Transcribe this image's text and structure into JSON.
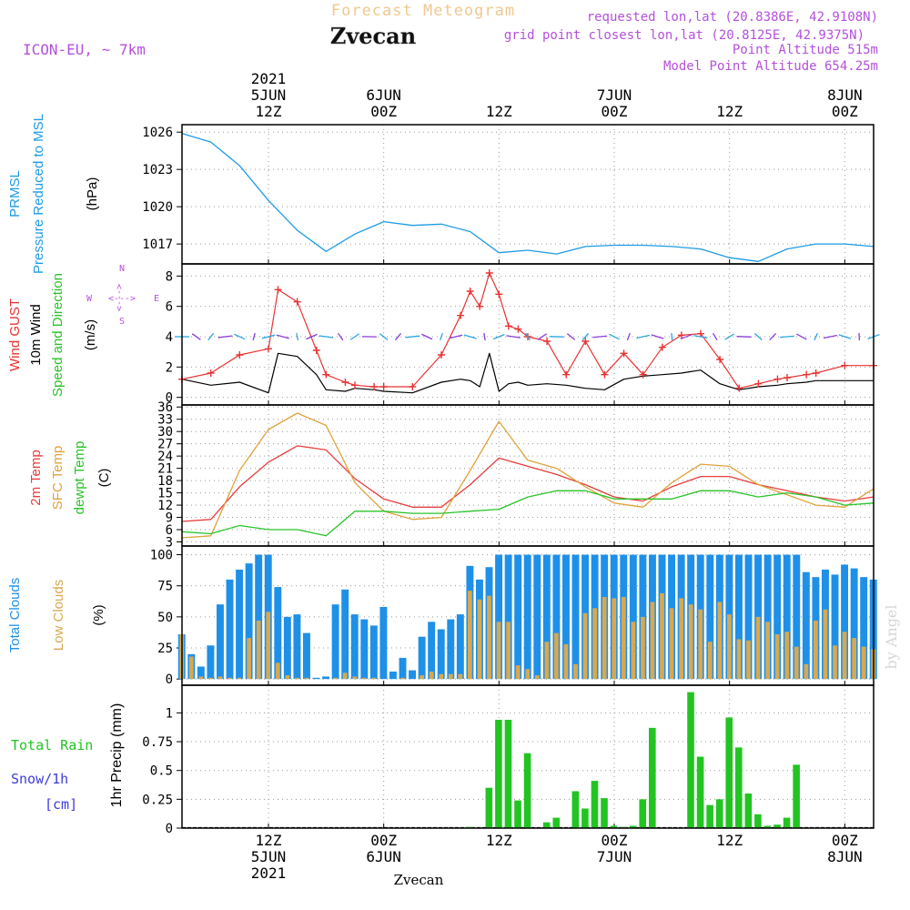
{
  "header": {
    "product": "Forecast Meteogram",
    "location": "Zvecan",
    "model": "ICON-EU, ~ 7km",
    "requested": "requested lon,lat (20.8386E, 42.9108N)",
    "gridpoint": "grid point closest lon,lat (20.8125E, 42.9375N)",
    "point_alt": "Point Altitude 515m",
    "model_alt": "Model Point Altitude 654.25m",
    "footer_location": "Zvecan",
    "credit": "by Angel"
  },
  "time_axis": {
    "top_labels": [
      {
        "lines": [
          "2021",
          "5JUN",
          "12Z"
        ]
      },
      {
        "lines": [
          "6JUN",
          "00Z"
        ]
      },
      {
        "lines": [
          "12Z"
        ]
      },
      {
        "lines": [
          "7JUN",
          "00Z"
        ]
      },
      {
        "lines": [
          "12Z"
        ]
      },
      {
        "lines": [
          "8JUN",
          "00Z"
        ]
      }
    ],
    "bottom_labels": [
      {
        "lines": [
          "12Z",
          "5JUN",
          "2021"
        ]
      },
      {
        "lines": [
          "00Z",
          "6JUN"
        ]
      },
      {
        "lines": [
          "12Z"
        ]
      },
      {
        "lines": [
          "00Z",
          "7JUN"
        ]
      },
      {
        "lines": [
          "12Z"
        ]
      },
      {
        "lines": [
          "00Z",
          "8JUN"
        ]
      }
    ],
    "tick_hours": [
      9,
      21,
      33,
      45,
      57,
      69
    ]
  },
  "panel_labels": {
    "pressure": {
      "title1": "PRMSL",
      "title2": "Pressure Reduced to MSL",
      "unit": "(hPa)"
    },
    "wind": {
      "gust": "Wind GUST",
      "wind10": "10m Wind",
      "dir": "Speed and Direction",
      "unit": "(m/s)",
      "compass": {
        "n": "N",
        "s": "S",
        "w": "W",
        "e": "E",
        "ns": "<--->",
        "we": "<--->"
      }
    },
    "temp": {
      "t2m": "2m Temp",
      "sfc": "SFC Temp",
      "dewpt": "dewpt Temp",
      "unit": "(C)"
    },
    "clouds": {
      "total": "Total Clouds",
      "low": "Low Clouds",
      "unit": "(%)"
    },
    "precip": {
      "rain": "Total  Rain",
      "snow": "Snow/1h",
      "cm": "[cm]",
      "unit": "1hr Precip (mm)"
    }
  },
  "colors": {
    "pressure": "#1e9be8",
    "gust": "#e83232",
    "wind": "#000000",
    "t2m": "#e83c3c",
    "sfc": "#e0a23c",
    "dewpt": "#28c428",
    "total_cloud": "#1e90e8",
    "low_cloud": "#d8a850",
    "rain": "#22c422",
    "purple": "#b450dc",
    "title_orange": "#f0c890"
  },
  "chart_data": [
    {
      "type": "line",
      "title": "PRMSL",
      "ylabel": "(hPa)",
      "yticks": [
        1017,
        1020,
        1023,
        1026
      ],
      "ylim": [
        1015.4,
        1026.6
      ],
      "x_hours": [
        0,
        3,
        6,
        9,
        12,
        15,
        18,
        21,
        24,
        27,
        30,
        33,
        36,
        39,
        42,
        45,
        48,
        51,
        54,
        57,
        60,
        63,
        66,
        69,
        72
      ],
      "series": [
        {
          "values": [
            1025.9,
            1025.2,
            1023.3,
            1020.5,
            1018.1,
            1016.4,
            1017.8,
            1018.8,
            1018.5,
            1018.6,
            1018.0,
            1016.3,
            1016.5,
            1016.2,
            1016.8,
            1016.9,
            1016.9,
            1016.8,
            1016.6,
            1015.9,
            1015.6,
            1016.6,
            1017.0,
            1017.0,
            1016.8
          ]
        }
      ]
    },
    {
      "type": "line",
      "title": "Wind GUST / 10m Wind",
      "ylabel": "(m/s)",
      "yticks": [
        0,
        2,
        4,
        6,
        8
      ],
      "ylim": [
        -0.5,
        8.8
      ],
      "x_hours": [
        0,
        3,
        6,
        9,
        10,
        12,
        14,
        15,
        17,
        18,
        20,
        21,
        24,
        27,
        29,
        30,
        31,
        32,
        33,
        34,
        35,
        36,
        38,
        40,
        42,
        44,
        46,
        48,
        50,
        52,
        54,
        56,
        58,
        60,
        62,
        63,
        65,
        66,
        69,
        72
      ],
      "series": [
        {
          "name": "Wind GUST",
          "values": [
            1.2,
            1.6,
            2.8,
            3.2,
            7.1,
            6.3,
            3.1,
            1.5,
            1.0,
            0.8,
            0.7,
            0.7,
            0.7,
            2.8,
            5.4,
            7.0,
            6.0,
            8.2,
            6.8,
            4.7,
            4.5,
            4.0,
            3.7,
            1.5,
            3.7,
            1.5,
            2.9,
            1.5,
            3.3,
            4.1,
            4.2,
            2.5,
            0.6,
            0.9,
            1.2,
            1.3,
            1.5,
            1.6,
            2.1,
            2.1
          ]
        },
        {
          "name": "10m Wind",
          "values": [
            1.2,
            0.8,
            1.0,
            0.3,
            2.9,
            2.7,
            1.5,
            0.5,
            0.4,
            0.6,
            0.5,
            0.4,
            0.3,
            1.0,
            1.2,
            1.1,
            0.7,
            2.9,
            0.4,
            0.9,
            1.0,
            0.8,
            0.9,
            0.8,
            0.6,
            0.5,
            1.2,
            1.4,
            1.5,
            1.6,
            1.8,
            0.9,
            0.5,
            0.7,
            0.8,
            0.9,
            1.0,
            1.1,
            1.1,
            1.1
          ]
        }
      ]
    },
    {
      "type": "line",
      "title": "2m Temp / SFC Temp / dewpt Temp",
      "ylabel": "(C)",
      "yticks": [
        3,
        6,
        9,
        12,
        15,
        18,
        21,
        24,
        27,
        30,
        33,
        36
      ],
      "ylim": [
        2.0,
        36.5
      ],
      "x_hours": [
        0,
        3,
        6,
        9,
        12,
        15,
        18,
        21,
        24,
        27,
        30,
        33,
        36,
        39,
        42,
        45,
        48,
        51,
        54,
        57,
        60,
        63,
        66,
        69,
        72
      ],
      "series": [
        {
          "name": "2m Temp",
          "values": [
            8.0,
            8.5,
            16.5,
            22.5,
            26.5,
            25.5,
            18.5,
            13.5,
            11.5,
            11.5,
            17.0,
            23.5,
            21.5,
            19.5,
            17.0,
            14.0,
            13.0,
            16.5,
            19.0,
            19.0,
            17.0,
            15.5,
            14.0,
            13.0,
            14.0
          ]
        },
        {
          "name": "SFC Temp",
          "values": [
            4.0,
            4.5,
            20.5,
            30.5,
            34.5,
            31.5,
            17.5,
            10.5,
            8.5,
            9.0,
            20.5,
            32.5,
            23.0,
            21.0,
            16.5,
            12.5,
            11.5,
            17.5,
            22.0,
            21.5,
            17.0,
            14.5,
            12.0,
            11.5,
            16.0
          ]
        },
        {
          "name": "dewpt Temp",
          "values": [
            5.5,
            5.0,
            7.0,
            6.0,
            6.0,
            4.5,
            10.5,
            10.5,
            10.0,
            10.0,
            10.5,
            11.0,
            14.0,
            15.5,
            15.5,
            13.5,
            13.5,
            13.5,
            15.5,
            15.5,
            14.0,
            15.0,
            14.0,
            12.0,
            12.5
          ]
        }
      ]
    },
    {
      "type": "bar",
      "title": "Total Clouds / Low Clouds",
      "ylabel": "(%)",
      "yticks": [
        0,
        25,
        50,
        75,
        100
      ],
      "ylim": [
        -5,
        107
      ],
      "x_hours": [
        0,
        1,
        2,
        3,
        4,
        5,
        6,
        7,
        8,
        9,
        10,
        11,
        12,
        13,
        14,
        15,
        16,
        17,
        18,
        19,
        20,
        21,
        22,
        23,
        24,
        25,
        26,
        27,
        28,
        29,
        30,
        31,
        32,
        33,
        34,
        35,
        36,
        37,
        38,
        39,
        40,
        41,
        42,
        43,
        44,
        45,
        46,
        47,
        48,
        49,
        50,
        51,
        52,
        53,
        54,
        55,
        56,
        57,
        58,
        59,
        60,
        61,
        62,
        63,
        64,
        65,
        66,
        67,
        68,
        69,
        70,
        71,
        72
      ],
      "series": [
        {
          "name": "Total Clouds",
          "values": [
            36,
            20,
            10,
            27,
            60,
            80,
            88,
            93,
            100,
            100,
            74,
            50,
            52,
            37,
            1,
            2,
            60,
            72,
            52,
            48,
            43,
            58,
            6,
            17,
            7,
            34,
            46,
            40,
            48,
            52,
            91,
            80,
            90,
            100,
            100,
            100,
            100,
            100,
            100,
            100,
            100,
            100,
            100,
            100,
            100,
            100,
            100,
            100,
            100,
            100,
            100,
            100,
            100,
            100,
            100,
            100,
            100,
            100,
            100,
            100,
            100,
            100,
            100,
            100,
            100,
            86,
            82,
            88,
            84,
            92,
            89,
            82,
            80
          ]
        },
        {
          "name": "Low Clouds",
          "values": [
            36,
            18,
            2,
            1,
            2,
            1,
            1,
            33,
            47,
            54,
            13,
            3,
            1,
            1,
            0,
            0,
            1,
            5,
            2,
            1,
            1,
            0,
            0,
            1,
            0,
            3,
            6,
            4,
            4,
            4,
            71,
            64,
            67,
            46,
            46,
            11,
            8,
            3,
            30,
            37,
            28,
            12,
            53,
            57,
            66,
            65,
            66,
            46,
            50,
            62,
            69,
            57,
            65,
            60,
            56,
            30,
            62,
            52,
            32,
            31,
            50,
            46,
            36,
            38,
            26,
            12,
            47,
            56,
            27,
            38,
            33,
            26,
            24
          ]
        }
      ]
    },
    {
      "type": "bar",
      "title": "1hr Precip (mm)",
      "ylabel": "1hr Precip (mm)",
      "yticks": [
        0,
        0.25,
        0.5,
        0.75,
        1
      ],
      "ytick_labels": [
        "0",
        "0.25",
        "0.5",
        "0.75",
        "1"
      ],
      "ylim": [
        0,
        1.24
      ],
      "x_hours": [
        30,
        32,
        33,
        34,
        35,
        36,
        38,
        39,
        41,
        42,
        43,
        44,
        45,
        46,
        47,
        48,
        49,
        53,
        54,
        55,
        56,
        57,
        58,
        59,
        60,
        61,
        62,
        63,
        64
      ],
      "series": [
        {
          "name": "Total Rain",
          "values": [
            0.01,
            0.35,
            0.94,
            0.94,
            0.24,
            0.65,
            0.05,
            0.09,
            0.32,
            0.17,
            0.41,
            0.26,
            0.02,
            0.01,
            0.02,
            0.25,
            0.87,
            1.18,
            0.62,
            0.2,
            0.25,
            0.96,
            0.7,
            0.3,
            0.12,
            0.02,
            0.03,
            0.09,
            0.55
          ]
        }
      ]
    }
  ]
}
